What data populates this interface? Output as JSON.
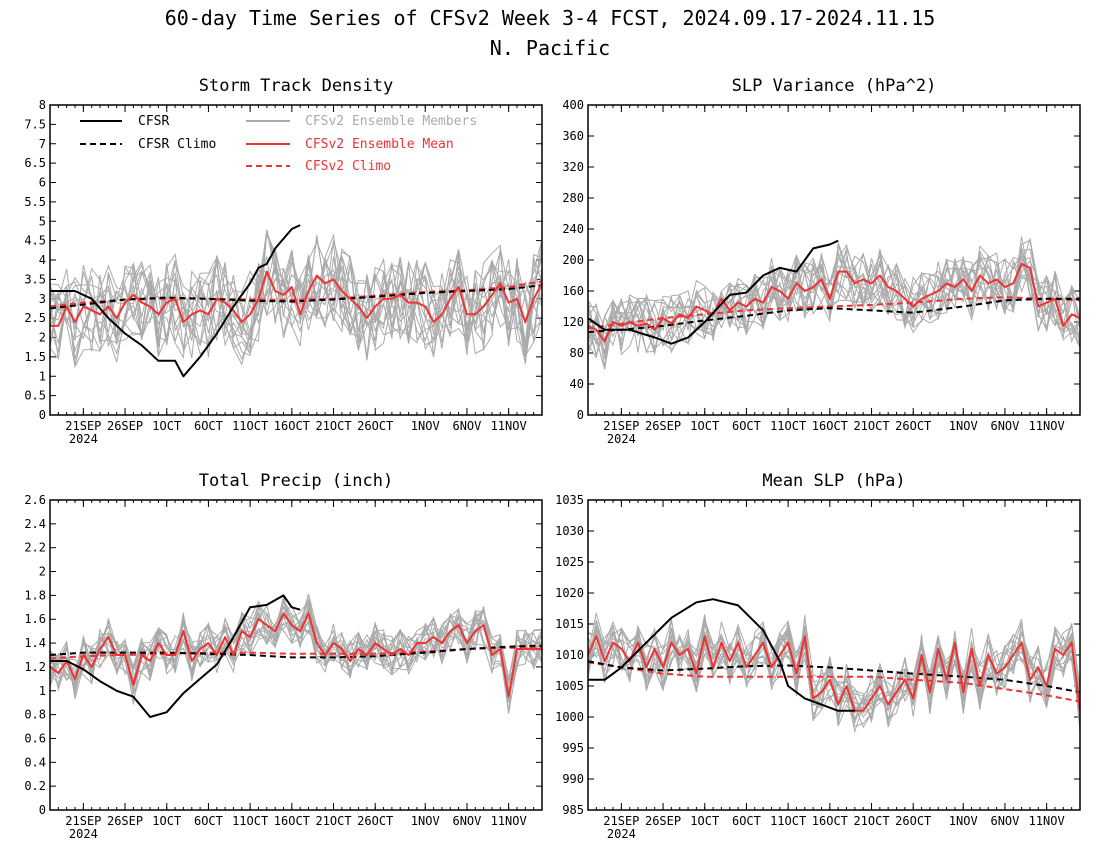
{
  "figure": {
    "title_line1": "60-day Time Series of CFSv2 Week 3-4 FCST, 2024.09.17-2024.11.15",
    "title_line2": "N. Pacific"
  },
  "colors": {
    "cfsr": "#000000",
    "members": "#aaaaaa",
    "ens_mean": "#ee3333",
    "cfsv2_climo": "#ee3333"
  },
  "legend": {
    "cfsr": "CFSR",
    "cfsr_climo": "CFSR Climo",
    "members": "CFSv2 Ensemble Members",
    "ens_mean": "CFSv2 Ensemble Mean",
    "cfsv2_climo": "CFSv2 Climo"
  },
  "x_axis": {
    "start": "2024-09-17",
    "end": "2024-11-15",
    "tick_labels": [
      "21SEP",
      "26SEP",
      "1OCT",
      "6OCT",
      "11OCT",
      "16OCT",
      "21OCT",
      "26OCT",
      "1NOV",
      "6NOV",
      "11NOV"
    ],
    "tick_dates": [
      "2024-09-21",
      "2024-09-26",
      "2024-10-01",
      "2024-10-06",
      "2024-10-11",
      "2024-10-16",
      "2024-10-21",
      "2024-10-26",
      "2024-11-01",
      "2024-11-06",
      "2024-11-11"
    ],
    "year_label": "2024"
  },
  "chart_data": [
    {
      "type": "line",
      "title": "Storm Track Density",
      "ylim": [
        0,
        8
      ],
      "yticks": [
        "0",
        "0.5",
        "1",
        "1.5",
        "2",
        "2.5",
        "3",
        "3.5",
        "4",
        "4.5",
        "5",
        "5.5",
        "6",
        "6.5",
        "7",
        "7.5",
        "8"
      ],
      "legend_shown": true,
      "legend_position": "top-left",
      "ens_member_count": 16,
      "ens_member_spread": 1.15,
      "series": [
        {
          "name": "CFSR",
          "role": "cfsr",
          "x": [
            "2024-09-17",
            "2024-09-20",
            "2024-09-22",
            "2024-09-24",
            "2024-09-26",
            "2024-09-28",
            "2024-09-30",
            "2024-10-02",
            "2024-10-03",
            "2024-10-05",
            "2024-10-07",
            "2024-10-09",
            "2024-10-11",
            "2024-10-12",
            "2024-10-13",
            "2024-10-14",
            "2024-10-16",
            "2024-10-17"
          ],
          "y": [
            3.2,
            3.2,
            3.0,
            2.5,
            2.1,
            1.8,
            1.4,
            1.4,
            1.0,
            1.5,
            2.1,
            2.8,
            3.4,
            3.8,
            3.9,
            4.3,
            4.8,
            4.9
          ]
        },
        {
          "name": "CFSR Climo",
          "role": "cfsr_climo",
          "x": [
            "2024-09-17",
            "2024-09-21",
            "2024-09-26",
            "2024-10-01",
            "2024-10-06",
            "2024-10-11",
            "2024-10-16",
            "2024-10-21",
            "2024-10-26",
            "2024-11-01",
            "2024-11-06",
            "2024-11-11",
            "2024-11-15"
          ],
          "y": [
            2.75,
            2.85,
            2.98,
            3.03,
            3.0,
            2.95,
            2.93,
            2.98,
            3.05,
            3.15,
            3.2,
            3.25,
            3.35
          ]
        },
        {
          "name": "CFSv2 Climo",
          "role": "cfsv2_climo",
          "x": [
            "2024-09-17",
            "2024-09-21",
            "2024-09-26",
            "2024-10-01",
            "2024-10-06",
            "2024-10-11",
            "2024-10-16",
            "2024-10-21",
            "2024-10-26",
            "2024-11-01",
            "2024-11-06",
            "2024-11-11",
            "2024-11-15"
          ],
          "y": [
            2.8,
            2.9,
            2.98,
            3.0,
            3.0,
            2.98,
            2.97,
            3.0,
            3.08,
            3.18,
            3.22,
            3.3,
            3.45
          ]
        },
        {
          "name": "CFSv2 Ensemble Mean",
          "role": "ens_mean",
          "x_start": "2024-09-17",
          "y": [
            2.3,
            2.3,
            2.8,
            2.4,
            2.8,
            2.7,
            2.6,
            2.8,
            2.5,
            2.9,
            3.1,
            2.9,
            2.8,
            2.6,
            2.9,
            3.0,
            2.4,
            2.6,
            2.7,
            2.6,
            3.0,
            2.9,
            2.7,
            2.4,
            2.6,
            3.0,
            3.7,
            3.2,
            3.1,
            3.3,
            2.6,
            3.2,
            3.6,
            3.4,
            3.5,
            3.2,
            3.0,
            2.8,
            2.5,
            2.8,
            3.0,
            3.0,
            3.1,
            2.9,
            2.9,
            2.8,
            2.4,
            2.6,
            3.0,
            3.3,
            2.6,
            2.6,
            2.8,
            3.1,
            3.4,
            2.9,
            3.0,
            2.4,
            3.0,
            3.4
          ]
        }
      ]
    },
    {
      "type": "line",
      "title": "SLP Variance (hPa^2)",
      "ylim": [
        0,
        400
      ],
      "yticks": [
        "0",
        "40",
        "80",
        "120",
        "160",
        "200",
        "240",
        "280",
        "320",
        "360",
        "400"
      ],
      "legend_shown": false,
      "ens_member_count": 16,
      "ens_member_spread": 38,
      "series": [
        {
          "name": "CFSR",
          "role": "cfsr",
          "x": [
            "2024-09-17",
            "2024-09-19",
            "2024-09-22",
            "2024-09-25",
            "2024-09-27",
            "2024-09-29",
            "2024-10-01",
            "2024-10-04",
            "2024-10-06",
            "2024-10-08",
            "2024-10-10",
            "2024-10-12",
            "2024-10-14",
            "2024-10-16",
            "2024-10-17"
          ],
          "y": [
            125,
            110,
            110,
            100,
            92,
            100,
            120,
            155,
            158,
            180,
            190,
            185,
            215,
            220,
            225
          ]
        },
        {
          "name": "CFSR Climo",
          "role": "cfsr_climo",
          "x": [
            "2024-09-17",
            "2024-09-21",
            "2024-09-26",
            "2024-10-01",
            "2024-10-06",
            "2024-10-11",
            "2024-10-16",
            "2024-10-21",
            "2024-10-26",
            "2024-11-01",
            "2024-11-06",
            "2024-11-11",
            "2024-11-15"
          ],
          "y": [
            107,
            110,
            115,
            122,
            128,
            135,
            138,
            135,
            132,
            140,
            148,
            150,
            150
          ]
        },
        {
          "name": "CFSv2 Climo",
          "role": "cfsv2_climo",
          "x": [
            "2024-09-17",
            "2024-09-21",
            "2024-09-26",
            "2024-10-01",
            "2024-10-06",
            "2024-10-11",
            "2024-10-16",
            "2024-10-21",
            "2024-10-26",
            "2024-11-01",
            "2024-11-06",
            "2024-11-11",
            "2024-11-15"
          ],
          "y": [
            112,
            118,
            125,
            130,
            135,
            138,
            140,
            142,
            145,
            150,
            152,
            150,
            148
          ]
        },
        {
          "name": "CFSv2 Ensemble Mean",
          "role": "ens_mean",
          "x_start": "2024-09-17",
          "y": [
            115,
            110,
            95,
            120,
            115,
            120,
            115,
            118,
            110,
            125,
            118,
            130,
            125,
            140,
            135,
            130,
            150,
            135,
            145,
            140,
            150,
            145,
            165,
            160,
            150,
            170,
            160,
            165,
            175,
            150,
            185,
            185,
            170,
            175,
            170,
            180,
            165,
            160,
            150,
            140,
            150,
            155,
            160,
            170,
            165,
            175,
            160,
            180,
            170,
            175,
            165,
            170,
            195,
            190,
            140,
            145,
            150,
            115,
            130,
            125
          ]
        }
      ]
    },
    {
      "type": "line",
      "title": "Total Precip (inch)",
      "ylim": [
        0,
        2.6
      ],
      "yticks": [
        "0",
        "0.2",
        "0.4",
        "0.6",
        "0.8",
        "1",
        "1.2",
        "1.4",
        "1.6",
        "1.8",
        "2",
        "2.2",
        "2.4",
        "2.6"
      ],
      "legend_shown": false,
      "ens_member_count": 16,
      "ens_member_spread": 0.17,
      "series": [
        {
          "name": "CFSR",
          "role": "cfsr",
          "x": [
            "2024-09-17",
            "2024-09-19",
            "2024-09-21",
            "2024-09-23",
            "2024-09-25",
            "2024-09-27",
            "2024-09-29",
            "2024-10-01",
            "2024-10-03",
            "2024-10-05",
            "2024-10-07",
            "2024-10-09",
            "2024-10-11",
            "2024-10-13",
            "2024-10-15",
            "2024-10-16",
            "2024-10-17"
          ],
          "y": [
            1.25,
            1.25,
            1.18,
            1.08,
            1.0,
            0.95,
            0.78,
            0.82,
            0.98,
            1.1,
            1.22,
            1.45,
            1.7,
            1.72,
            1.8,
            1.7,
            1.68
          ]
        },
        {
          "name": "CFSR Climo",
          "role": "cfsr_climo",
          "x": [
            "2024-09-17",
            "2024-09-21",
            "2024-09-26",
            "2024-10-01",
            "2024-10-06",
            "2024-10-11",
            "2024-10-16",
            "2024-10-21",
            "2024-10-26",
            "2024-11-01",
            "2024-11-06",
            "2024-11-11",
            "2024-11-15"
          ],
          "y": [
            1.3,
            1.32,
            1.32,
            1.32,
            1.31,
            1.3,
            1.28,
            1.28,
            1.29,
            1.32,
            1.35,
            1.37,
            1.38
          ]
        },
        {
          "name": "CFSv2 Climo",
          "role": "cfsv2_climo",
          "x": [
            "2024-09-17",
            "2024-09-21",
            "2024-09-26",
            "2024-10-01",
            "2024-10-06",
            "2024-10-11",
            "2024-10-16",
            "2024-10-21",
            "2024-10-26",
            "2024-11-01",
            "2024-11-06",
            "2024-11-11",
            "2024-11-15"
          ],
          "y": [
            1.27,
            1.29,
            1.3,
            1.31,
            1.32,
            1.32,
            1.31,
            1.31,
            1.31,
            1.33,
            1.35,
            1.36,
            1.36
          ]
        },
        {
          "name": "CFSv2 Ensemble Mean",
          "role": "ens_mean",
          "x_start": "2024-09-17",
          "y": [
            1.2,
            1.15,
            1.25,
            1.1,
            1.3,
            1.2,
            1.35,
            1.45,
            1.3,
            1.3,
            1.05,
            1.3,
            1.25,
            1.4,
            1.3,
            1.3,
            1.5,
            1.25,
            1.35,
            1.4,
            1.3,
            1.45,
            1.3,
            1.5,
            1.45,
            1.6,
            1.55,
            1.5,
            1.65,
            1.55,
            1.5,
            1.65,
            1.4,
            1.3,
            1.4,
            1.35,
            1.25,
            1.35,
            1.3,
            1.4,
            1.35,
            1.3,
            1.35,
            1.3,
            1.4,
            1.4,
            1.45,
            1.4,
            1.5,
            1.55,
            1.4,
            1.5,
            1.55,
            1.3,
            1.35,
            0.95,
            1.35,
            1.35,
            1.35,
            1.35
          ]
        }
      ]
    },
    {
      "type": "line",
      "title": "Mean SLP (hPa)",
      "ylim": [
        985,
        1035
      ],
      "yticks": [
        "985",
        "990",
        "995",
        "1000",
        "1005",
        "1010",
        "1015",
        "1020",
        "1025",
        "1030",
        "1035"
      ],
      "legend_shown": false,
      "ens_member_count": 16,
      "ens_member_spread": 3.8,
      "series": [
        {
          "name": "CFSR",
          "role": "cfsr",
          "x": [
            "2024-09-17",
            "2024-09-19",
            "2024-09-21",
            "2024-09-24",
            "2024-09-27",
            "2024-09-30",
            "2024-10-02",
            "2024-10-05",
            "2024-10-08",
            "2024-10-10",
            "2024-10-11",
            "2024-10-13",
            "2024-10-15",
            "2024-10-17",
            "2024-10-19"
          ],
          "y": [
            1006,
            1006,
            1008,
            1012,
            1016,
            1018.5,
            1019,
            1018,
            1014,
            1009,
            1005,
            1003,
            1002,
            1001,
            1001
          ]
        },
        {
          "name": "CFSR Climo",
          "role": "cfsr_climo",
          "x": [
            "2024-09-17",
            "2024-09-21",
            "2024-09-26",
            "2024-10-01",
            "2024-10-06",
            "2024-10-11",
            "2024-10-16",
            "2024-10-21",
            "2024-10-26",
            "2024-11-01",
            "2024-11-06",
            "2024-11-11",
            "2024-11-15"
          ],
          "y": [
            1009,
            1008,
            1007.5,
            1007.8,
            1008.2,
            1008.3,
            1008,
            1007.5,
            1007,
            1006.5,
            1006,
            1005,
            1004
          ]
        },
        {
          "name": "CFSv2 Climo",
          "role": "cfsv2_climo",
          "x": [
            "2024-09-17",
            "2024-09-21",
            "2024-09-26",
            "2024-10-01",
            "2024-10-06",
            "2024-10-11",
            "2024-10-16",
            "2024-10-21",
            "2024-10-26",
            "2024-11-01",
            "2024-11-06",
            "2024-11-11",
            "2024-11-15"
          ],
          "y": [
            1008.8,
            1008,
            1007,
            1006.5,
            1006.5,
            1006.5,
            1006.5,
            1006.5,
            1006,
            1005.5,
            1004.5,
            1003.5,
            1002.5
          ]
        },
        {
          "name": "CFSv2 Ensemble Mean",
          "role": "ens_mean",
          "x_start": "2024-09-17",
          "y": [
            1010,
            1013,
            1009,
            1012,
            1011,
            1009,
            1012,
            1008,
            1011,
            1008,
            1012,
            1010,
            1011,
            1007,
            1013,
            1008,
            1012,
            1009,
            1012,
            1008,
            1010,
            1012,
            1008,
            1010,
            1012,
            1007,
            1013,
            1003,
            1004,
            1006,
            1002,
            1005,
            1001,
            1001,
            1003,
            1005,
            1002,
            1004,
            1006,
            1003,
            1010,
            1004,
            1011,
            1006,
            1012,
            1004,
            1011,
            1005,
            1010,
            1007,
            1008,
            1010,
            1012,
            1006,
            1008,
            1005,
            1011,
            1010,
            1012,
            1001
          ]
        }
      ]
    }
  ]
}
